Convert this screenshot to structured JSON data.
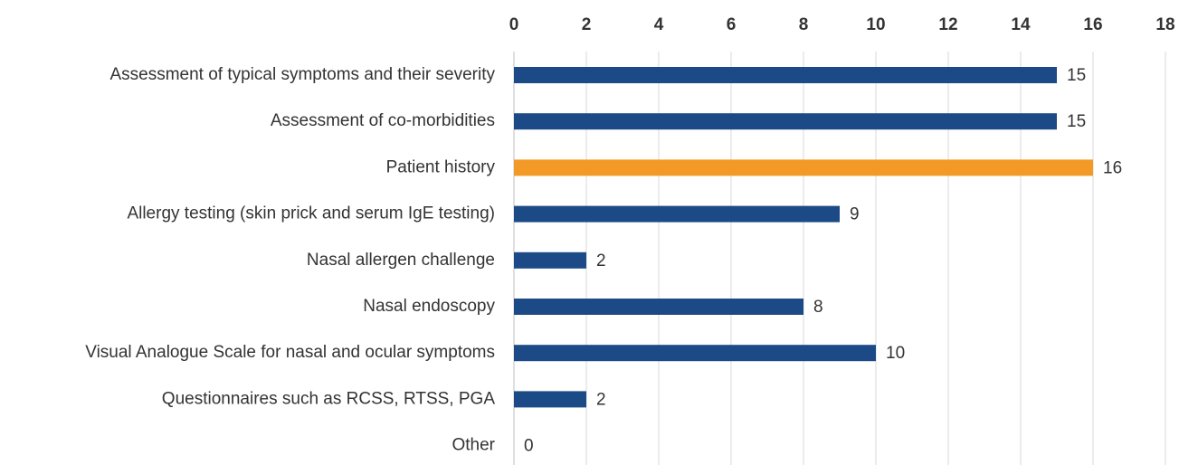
{
  "chart_data": {
    "type": "bar",
    "orientation": "horizontal",
    "categories": [
      "Assessment of typical symptoms and their severity",
      "Assessment of co-morbidities",
      "Patient history",
      "Allergy testing (skin prick and serum IgE testing)",
      "Nasal allergen challenge",
      "Nasal endoscopy",
      "Visual Analogue Scale for nasal and ocular symptoms",
      "Questionnaires such as RCSS, RTSS, PGA",
      "Other"
    ],
    "values": [
      15,
      15,
      16,
      9,
      2,
      8,
      10,
      2,
      0
    ],
    "colors": [
      "#1b4a86",
      "#1b4a86",
      "#f39a26",
      "#1b4a86",
      "#1b4a86",
      "#1b4a86",
      "#1b4a86",
      "#1b4a86",
      "#1b4a86"
    ],
    "xlim": [
      0,
      18
    ],
    "xticks": [
      0,
      2,
      4,
      6,
      8,
      10,
      12,
      14,
      16,
      18
    ],
    "grid": true,
    "x_axis_position": "top"
  }
}
